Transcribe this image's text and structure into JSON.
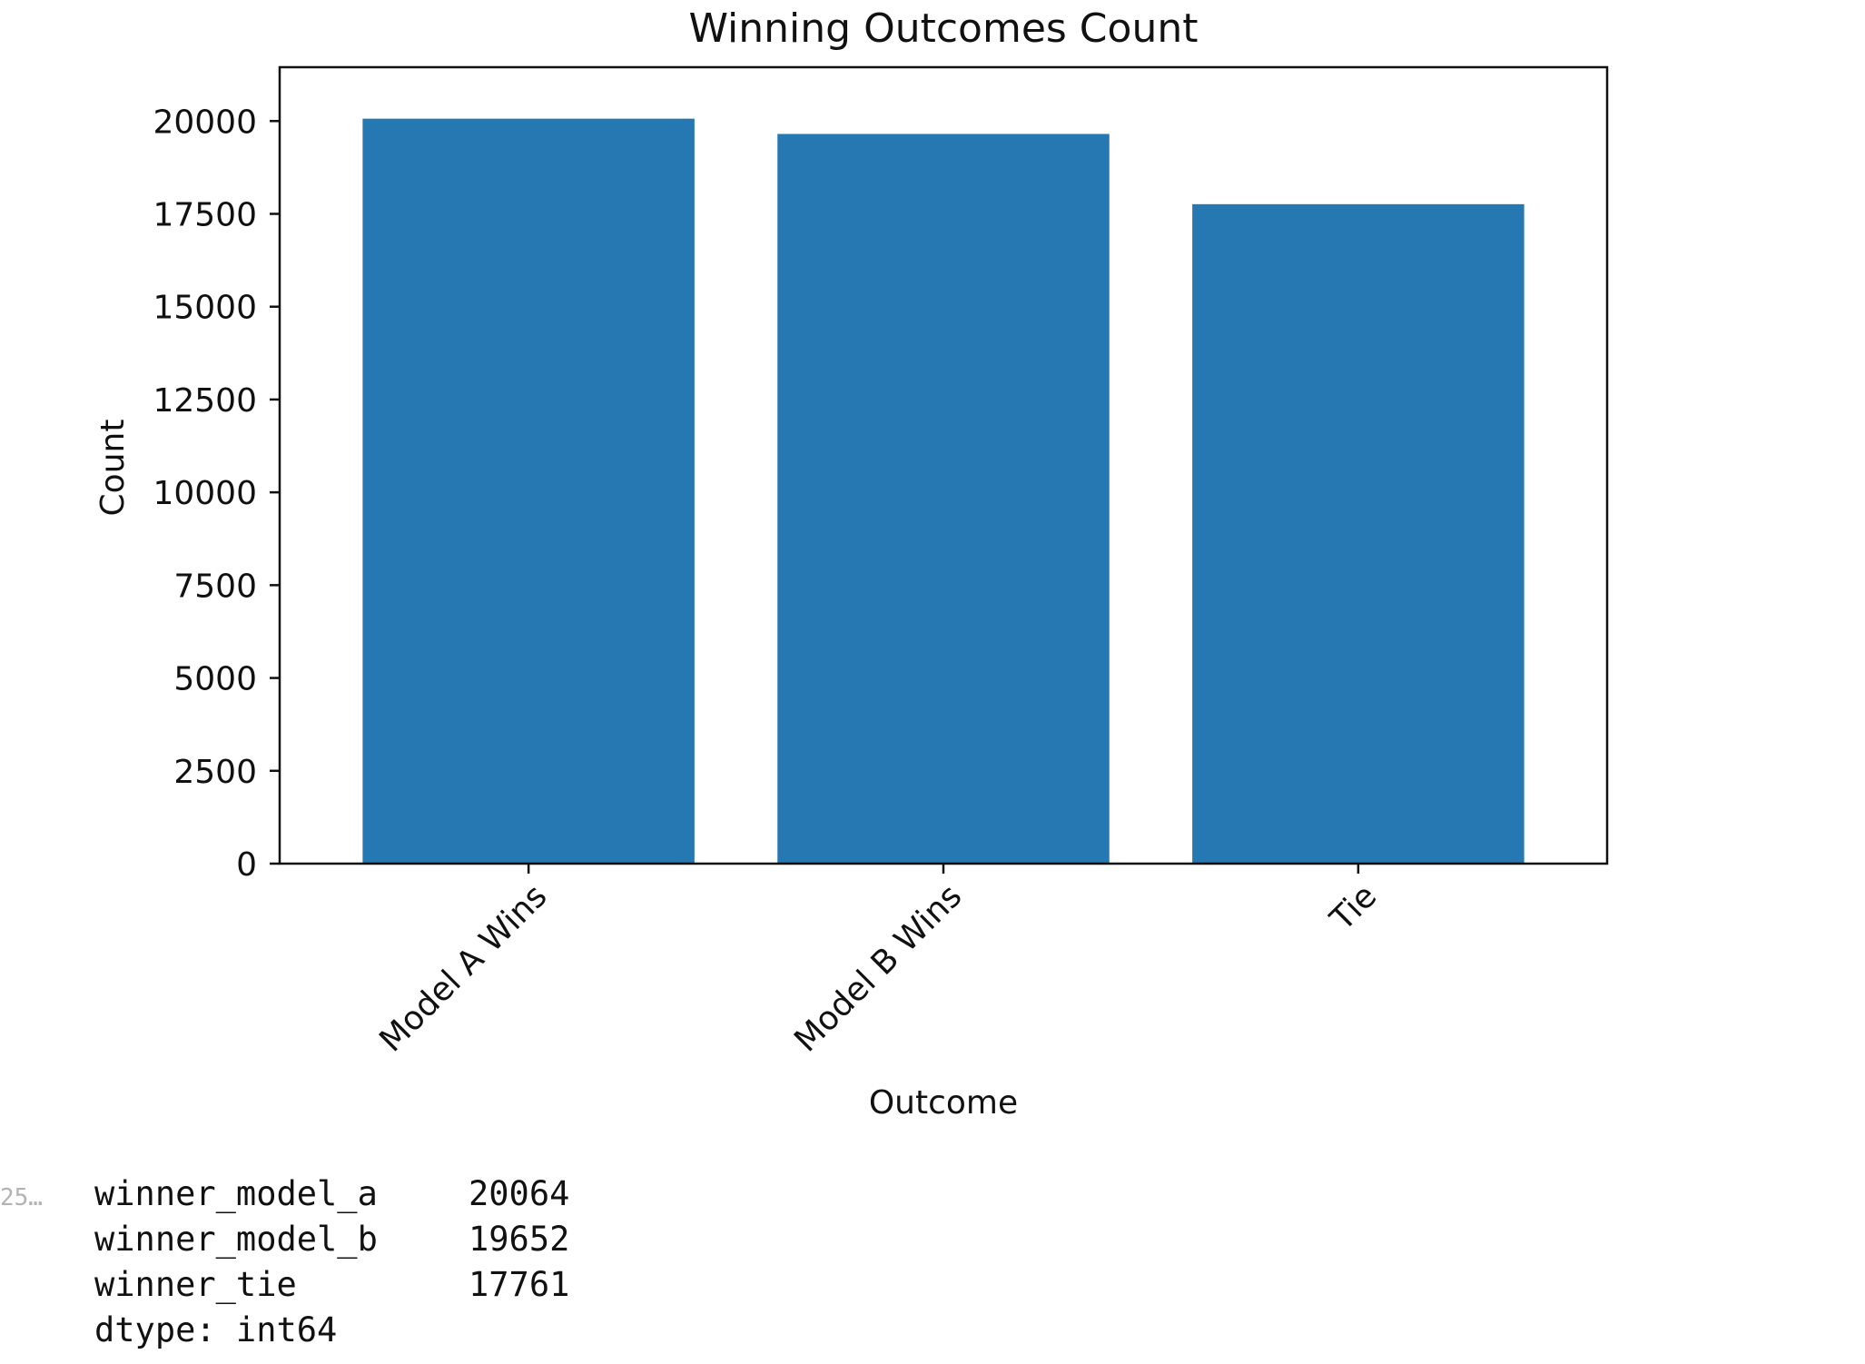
{
  "chart_data": {
    "type": "bar",
    "title": "Winning Outcomes Count",
    "xlabel": "Outcome",
    "ylabel": "Count",
    "categories": [
      "Model A Wins",
      "Model B Wins",
      "Tie"
    ],
    "values": [
      20064,
      19652,
      17761
    ],
    "ylim": [
      0,
      21450
    ],
    "yticks": [
      0,
      2500,
      5000,
      7500,
      10000,
      12500,
      15000,
      17500,
      20000
    ],
    "ytick_labels": [
      "0",
      "2500",
      "5000",
      "7500",
      "10000",
      "12500",
      "15000",
      "17500",
      "20000"
    ],
    "bar_color": "#2678b2",
    "grid": false,
    "legend": "none"
  },
  "output": {
    "prompt": "25…",
    "rows": [
      {
        "key": "winner_model_a",
        "value": "20064"
      },
      {
        "key": "winner_model_b",
        "value": "19652"
      },
      {
        "key": "winner_tie",
        "value": "17761"
      }
    ],
    "dtype": "dtype: int64"
  }
}
